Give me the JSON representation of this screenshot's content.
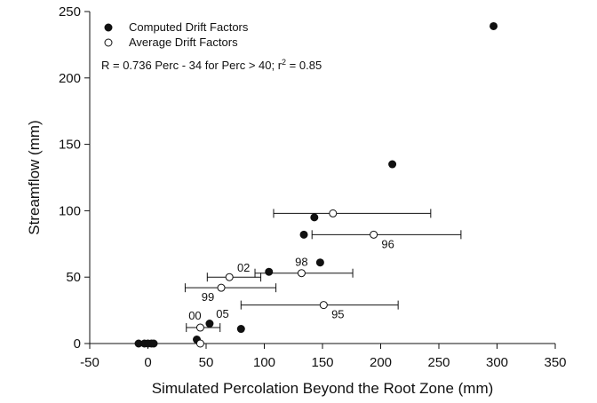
{
  "chart_data": {
    "type": "scatter",
    "title": "",
    "xlabel": "Simulated Percolation Beyond the Root Zone (mm)",
    "ylabel": "Streamflow (mm)",
    "xlim": [
      -50,
      350
    ],
    "ylim": [
      0,
      250
    ],
    "xticks": [
      -50,
      0,
      50,
      100,
      150,
      200,
      250,
      300,
      350
    ],
    "yticks": [
      0,
      50,
      100,
      150,
      200,
      250
    ],
    "grid": false,
    "legend_position": "top-left",
    "annotation": {
      "prefix": "R = 0.736 Perc - 34  for Perc > 40;  r",
      "superscript": "2",
      "suffix": " = 0.85"
    },
    "series": [
      {
        "name": "Computed Drift Factors",
        "marker": "filled-circle",
        "color": "#111111",
        "points": [
          {
            "x": -8,
            "y": 0
          },
          {
            "x": -3,
            "y": 0
          },
          {
            "x": 0,
            "y": 0
          },
          {
            "x": 3,
            "y": 0
          },
          {
            "x": 5,
            "y": 0
          },
          {
            "x": 42,
            "y": 3
          },
          {
            "x": 53,
            "y": 15
          },
          {
            "x": 80,
            "y": 11
          },
          {
            "x": 104,
            "y": 54
          },
          {
            "x": 134,
            "y": 82
          },
          {
            "x": 143,
            "y": 95
          },
          {
            "x": 148,
            "y": 61
          },
          {
            "x": 210,
            "y": 135
          },
          {
            "x": 297,
            "y": 239
          }
        ]
      },
      {
        "name": "Average Drift Factors",
        "marker": "open-circle",
        "color": "#111111",
        "points": [
          {
            "x": 45,
            "y": 0
          },
          {
            "x": 45,
            "y": 12,
            "xerr": [
              33,
              62
            ],
            "label": "00"
          },
          {
            "x": 63,
            "y": 42,
            "xerr": [
              32,
              110
            ],
            "label": "99"
          },
          {
            "x": 70,
            "y": 50,
            "xerr": [
              51,
              97
            ],
            "label": "02"
          },
          {
            "x": 132,
            "y": 53,
            "xerr": [
              92,
              176
            ],
            "label": "98"
          },
          {
            "x": 151,
            "y": 29,
            "xerr": [
              80,
              215
            ],
            "label": "95"
          },
          {
            "x": 159,
            "y": 98,
            "xerr": [
              108,
              243
            ]
          },
          {
            "x": 194,
            "y": 82,
            "xerr": [
              141,
              269
            ],
            "label": "96"
          }
        ]
      }
    ],
    "extra_labels": [
      {
        "text": "05",
        "x": 58,
        "y": 22
      }
    ]
  }
}
